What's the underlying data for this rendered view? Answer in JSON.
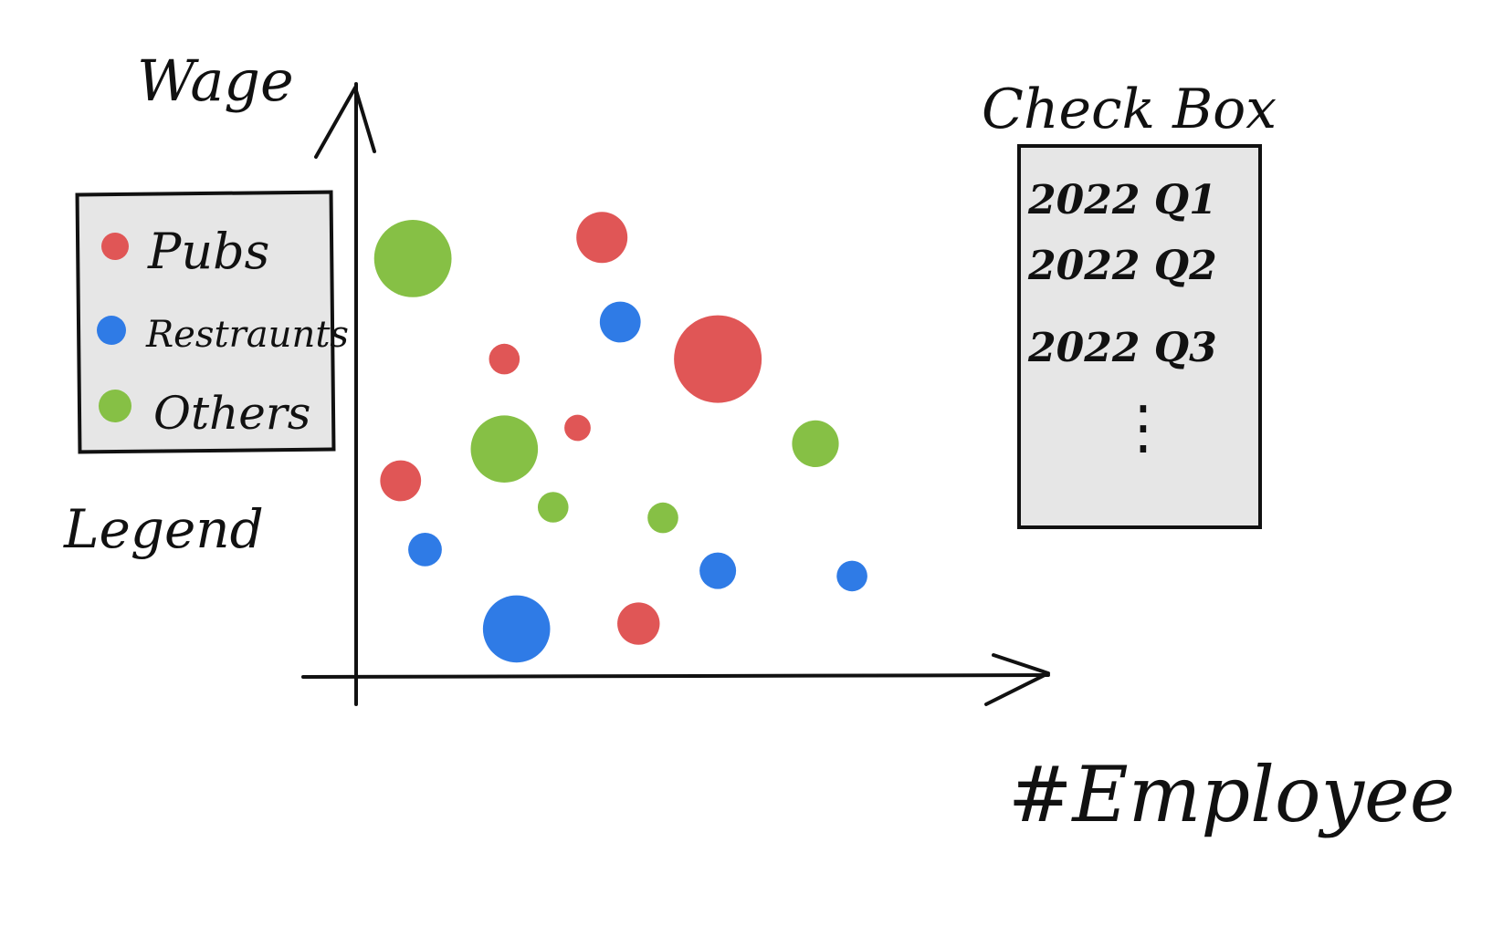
{
  "axes": {
    "y_label": "Wage",
    "x_label": "#Employee"
  },
  "legend": {
    "caption": "Legend",
    "items": [
      {
        "label": "Pubs",
        "color": "#e05656"
      },
      {
        "label": "Restraunts",
        "color": "#2f7be6"
      },
      {
        "label": "Others",
        "color": "#86c045"
      }
    ]
  },
  "check_box": {
    "title": "Check Box",
    "options": [
      "2022 Q1",
      "2022 Q2",
      "2022 Q3"
    ],
    "more": "⋮"
  },
  "chart_data": {
    "type": "scatter",
    "title": "",
    "xlabel": "#Employee",
    "ylabel": "Wage",
    "series": [
      {
        "name": "Pubs",
        "points": [
          {
            "x": 0.4,
            "y": 0.81,
            "size": 0.5
          },
          {
            "x": 0.24,
            "y": 0.58,
            "size": 0.22
          },
          {
            "x": 0.59,
            "y": 0.58,
            "size": 1.0
          },
          {
            "x": 0.36,
            "y": 0.45,
            "size": 0.16
          },
          {
            "x": 0.07,
            "y": 0.35,
            "size": 0.36
          },
          {
            "x": 0.46,
            "y": 0.08,
            "size": 0.38
          }
        ]
      },
      {
        "name": "Restraunts",
        "points": [
          {
            "x": 0.43,
            "y": 0.65,
            "size": 0.36
          },
          {
            "x": 0.11,
            "y": 0.22,
            "size": 0.26
          },
          {
            "x": 0.26,
            "y": 0.07,
            "size": 0.72
          },
          {
            "x": 0.59,
            "y": 0.18,
            "size": 0.3
          },
          {
            "x": 0.81,
            "y": 0.17,
            "size": 0.22
          }
        ]
      },
      {
        "name": "Others",
        "points": [
          {
            "x": 0.09,
            "y": 0.77,
            "size": 0.86
          },
          {
            "x": 0.24,
            "y": 0.41,
            "size": 0.72
          },
          {
            "x": 0.32,
            "y": 0.3,
            "size": 0.22
          },
          {
            "x": 0.5,
            "y": 0.28,
            "size": 0.22
          },
          {
            "x": 0.75,
            "y": 0.42,
            "size": 0.44
          }
        ]
      }
    ]
  }
}
